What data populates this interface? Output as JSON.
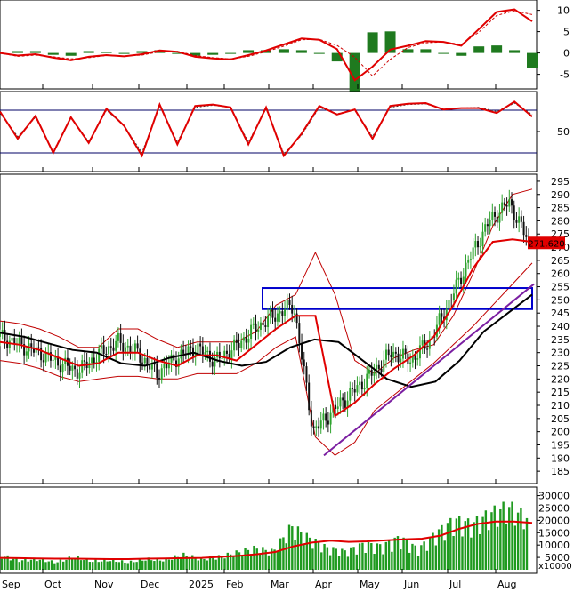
{
  "chart_data": {
    "type": "line",
    "x_months": [
      "Sep",
      "Oct",
      "Nov",
      "Dec",
      "2025",
      "Feb",
      "Mar",
      "Apr",
      "May",
      "Jun",
      "Jul",
      "Aug"
    ],
    "price_marker": "271.620",
    "volume_unit": "x10000",
    "panels": {
      "macd": {
        "yticks": [
          10,
          5,
          0,
          -5
        ],
        "ylim": [
          -8,
          12
        ],
        "series": {
          "macd": [
            0,
            -0.6,
            -0.3,
            -1.1,
            -1.7,
            -0.9,
            -0.5,
            -0.8,
            -0.3,
            0.6,
            0.3,
            -0.9,
            -1.3,
            -1.5,
            -0.5,
            0.6,
            2,
            3.4,
            3.1,
            0.9,
            -6.4,
            -3.2,
            0.8,
            1.7,
            2.8,
            2.6,
            1.7,
            5.6,
            9.6,
            10.2,
            7.4
          ],
          "signal": [
            0,
            -0.8,
            -0.5,
            -0.9,
            -1.4,
            -1.1,
            -0.6,
            -0.7,
            -0.5,
            0.3,
            0.4,
            -0.6,
            -1.1,
            -1.4,
            -0.8,
            0.3,
            1.6,
            3.1,
            3.2,
            1.8,
            -1,
            -5.4,
            -1.5,
            1.3,
            2.4,
            2.6,
            2,
            4.9,
            8.8,
            9.9,
            9
          ]
        }
      },
      "stochastic": {
        "yticks": [
          50
        ],
        "levels": [
          80,
          20
        ],
        "ylim": [
          0,
          100
        ],
        "series": {
          "k": [
            78,
            40,
            72,
            20,
            70,
            34,
            82,
            58,
            16,
            88,
            32,
            86,
            88,
            84,
            32,
            84,
            16,
            47,
            86,
            74,
            81,
            40,
            86,
            89,
            90,
            81,
            83,
            83,
            76,
            92,
            71
          ],
          "d": [
            76,
            43,
            70,
            22,
            69,
            36,
            80,
            58,
            20,
            86,
            35,
            84,
            87,
            84,
            35,
            82,
            19,
            45,
            84,
            75,
            80,
            43,
            84,
            88,
            89,
            81,
            83,
            84,
            78,
            90,
            74
          ]
        }
      },
      "price": {
        "yticks": [
          295,
          290,
          285,
          280,
          275,
          270,
          265,
          260,
          255,
          250,
          245,
          240,
          235,
          230,
          225,
          220,
          215,
          210,
          205,
          200,
          195,
          190,
          185
        ],
        "ylim": [
          181,
          297
        ],
        "series": {
          "close": [
            236,
            233,
            230,
            226,
            223,
            229,
            234,
            230,
            222,
            228,
            232,
            227,
            232,
            239,
            244,
            248,
            200,
            208,
            215,
            222,
            230,
            227,
            235,
            250,
            266,
            280,
            287,
            272
          ],
          "ma20": [
            234,
            233,
            231,
            228,
            225,
            226,
            230,
            230,
            227,
            225,
            229,
            229,
            227,
            233,
            239,
            244,
            244,
            206,
            211,
            218,
            224,
            229,
            236,
            248,
            262,
            272,
            273,
            272
          ],
          "ma50": [
            237.5,
            236,
            233.5,
            231,
            230,
            226,
            225,
            228,
            230,
            227,
            225,
            226.5,
            232,
            235,
            234,
            227,
            220,
            217,
            219,
            227,
            238,
            245,
            252
          ],
          "bb_upper": [
            242,
            241,
            239,
            236,
            232,
            232,
            239,
            239,
            235,
            232,
            234,
            234,
            234,
            238,
            248,
            252,
            268,
            252,
            227,
            222,
            228,
            231,
            233,
            244,
            260,
            278,
            290,
            292
          ],
          "bb_lower": [
            227,
            226,
            224,
            221,
            219,
            220,
            221,
            221,
            220,
            220,
            222,
            222,
            222,
            226,
            232,
            236,
            198,
            191,
            196,
            208,
            214,
            220,
            226,
            233,
            240,
            248,
            256,
            264
          ],
          "trendline": [
            191,
            256
          ],
          "resistance_box": [
            246.5,
            254.5
          ]
        }
      },
      "volume": {
        "yticks": [
          30000,
          25000,
          20000,
          15000,
          10000,
          5000
        ],
        "ylim": [
          0,
          32000
        ],
        "series": {
          "bars": [
            6500,
            4500,
            5000,
            3500,
            6000,
            4000,
            4500,
            3500,
            5000,
            4500,
            7000,
            5000,
            6000,
            8000,
            10000,
            8500,
            20000,
            14500,
            10000,
            8500,
            12000,
            11000,
            15000,
            9500,
            17000,
            23000,
            21000,
            26000,
            29000,
            24000
          ],
          "ma": [
            4800,
            4700,
            4600,
            4500,
            4500,
            4400,
            4300,
            4300,
            4500,
            4600,
            4700,
            4800,
            5200,
            5600,
            6300,
            7200,
            9500,
            11000,
            11800,
            11300,
            11500,
            11900,
            12300,
            12600,
            13800,
            16500,
            18500,
            19500,
            19500,
            19000
          ]
        }
      }
    }
  }
}
